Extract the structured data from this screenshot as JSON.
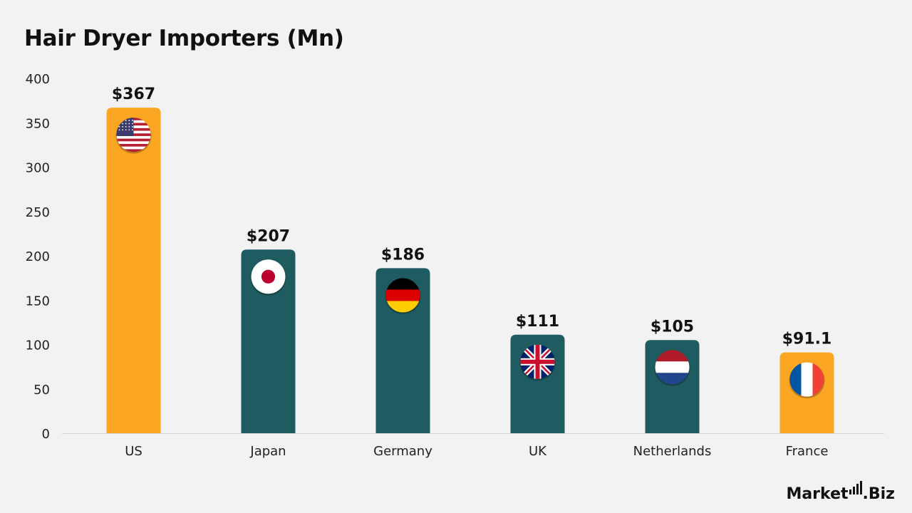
{
  "chart_data": {
    "type": "bar",
    "title": "Hair Dryer Importers (Mn)",
    "categories": [
      "US",
      "Japan",
      "Germany",
      "UK",
      "Netherlands",
      "France"
    ],
    "values": [
      367,
      207,
      186,
      111,
      105,
      91.1
    ],
    "value_labels": [
      "$367",
      "$207",
      "$186",
      "$111",
      "$105",
      "$91.1"
    ],
    "ylim": [
      0,
      400
    ],
    "yticks": [
      0,
      50,
      100,
      150,
      200,
      250,
      300,
      350,
      400
    ],
    "bar_colors": [
      "#fba623",
      "#1f5c61",
      "#1f5c61",
      "#1f5c61",
      "#1f5c61",
      "#fba623"
    ],
    "flag_icons": [
      "us-flag-icon",
      "japan-flag-icon",
      "germany-flag-icon",
      "uk-flag-icon",
      "netherlands-flag-icon",
      "france-flag-icon"
    ],
    "grid": false,
    "xlabel": "",
    "ylabel": ""
  },
  "brand": {
    "name_main": "Market",
    "name_suffix": ".Biz"
  }
}
